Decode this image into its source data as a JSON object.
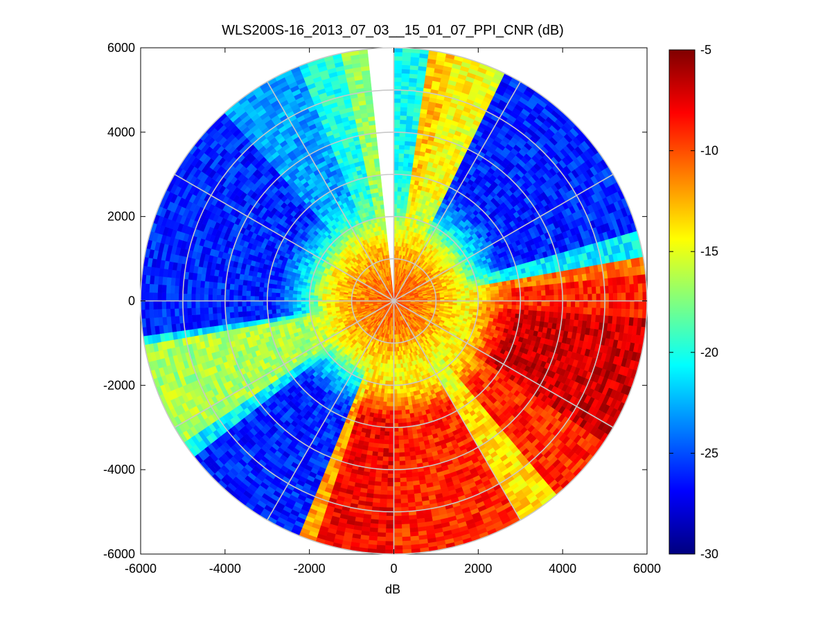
{
  "chart_data": {
    "type": "heatmap",
    "subtype": "polar-ppi",
    "title": "WLS200S-16_2013_07_03__15_01_07_PPI_CNR (dB)",
    "xlabel": "dB",
    "ylabel": "",
    "xlim": [
      -6000,
      6000
    ],
    "ylim": [
      -6000,
      6000
    ],
    "xticks": [
      "-6000",
      "-4000",
      "-2000",
      "0",
      "2000",
      "4000",
      "6000"
    ],
    "yticks": [
      "6000",
      "4000",
      "2000",
      "0",
      "-2000",
      "-4000",
      "-6000"
    ],
    "range_max": 6000,
    "range_rings": [
      1000,
      2000,
      3000,
      4000,
      5000,
      6000
    ],
    "azimuth_spokes_deg": [
      0,
      30,
      60,
      90,
      120,
      150,
      180,
      210,
      240,
      270,
      300,
      330
    ],
    "colorbar": {
      "colormap": "jet",
      "clim": [
        -30,
        -5
      ],
      "ticks": [
        "-5",
        "-10",
        "-15",
        "-20",
        "-25",
        "-30"
      ]
    },
    "sectors": [
      {
        "az_from": 0,
        "az_to": 9,
        "far_cnr": -20.5,
        "note": "cyan/blue"
      },
      {
        "az_from": 9,
        "az_to": 15,
        "far_cnr": -13,
        "note": "orange"
      },
      {
        "az_from": 15,
        "az_to": 26,
        "far_cnr": -14.5,
        "note": "yellow"
      },
      {
        "az_from": 26,
        "az_to": 75,
        "far_cnr": -26,
        "note": "blue"
      },
      {
        "az_from": 75,
        "az_to": 80,
        "far_cnr": -21,
        "note": "cyan"
      },
      {
        "az_from": 80,
        "az_to": 85,
        "far_cnr": -11,
        "note": "orange"
      },
      {
        "az_from": 85,
        "az_to": 95,
        "far_cnr": -9,
        "note": "red"
      },
      {
        "az_from": 95,
        "az_to": 125,
        "far_cnr": -7,
        "note": "dark red"
      },
      {
        "az_from": 125,
        "az_to": 140,
        "far_cnr": -9,
        "note": "red"
      },
      {
        "az_from": 140,
        "az_to": 151,
        "far_cnr": -13.5,
        "note": "yellow/orange"
      },
      {
        "az_from": 151,
        "az_to": 180,
        "far_cnr": -9,
        "note": "red"
      },
      {
        "az_from": 180,
        "az_to": 198,
        "far_cnr": -8,
        "note": "red/dark red"
      },
      {
        "az_from": 198,
        "az_to": 203,
        "far_cnr": -12,
        "note": "orange"
      },
      {
        "az_from": 203,
        "az_to": 233,
        "far_cnr": -26,
        "note": "blue"
      },
      {
        "az_from": 233,
        "az_to": 237,
        "far_cnr": -21,
        "note": "cyan"
      },
      {
        "az_from": 237,
        "az_to": 260,
        "far_cnr": -16.5,
        "note": "light green"
      },
      {
        "az_from": 260,
        "az_to": 262,
        "far_cnr": -21,
        "note": "cyan"
      },
      {
        "az_from": 262,
        "az_to": 318,
        "far_cnr": -26,
        "note": "blue"
      },
      {
        "az_from": 318,
        "az_to": 338,
        "far_cnr": -23,
        "note": "light blue"
      },
      {
        "az_from": 338,
        "az_to": 348,
        "far_cnr": -20,
        "note": "cyan"
      },
      {
        "az_from": 348,
        "az_to": 355,
        "far_cnr": -17,
        "note": "green"
      },
      {
        "az_from": 355,
        "az_to": 360,
        "far_cnr": null,
        "note": "no data (white)"
      }
    ],
    "near_range_profile": [
      {
        "range": 0,
        "cnr": -10
      },
      {
        "range": 1000,
        "cnr": -12
      },
      {
        "range": 1600,
        "cnr": -14.5
      },
      {
        "range": 2200,
        "cnr": -17
      }
    ]
  }
}
